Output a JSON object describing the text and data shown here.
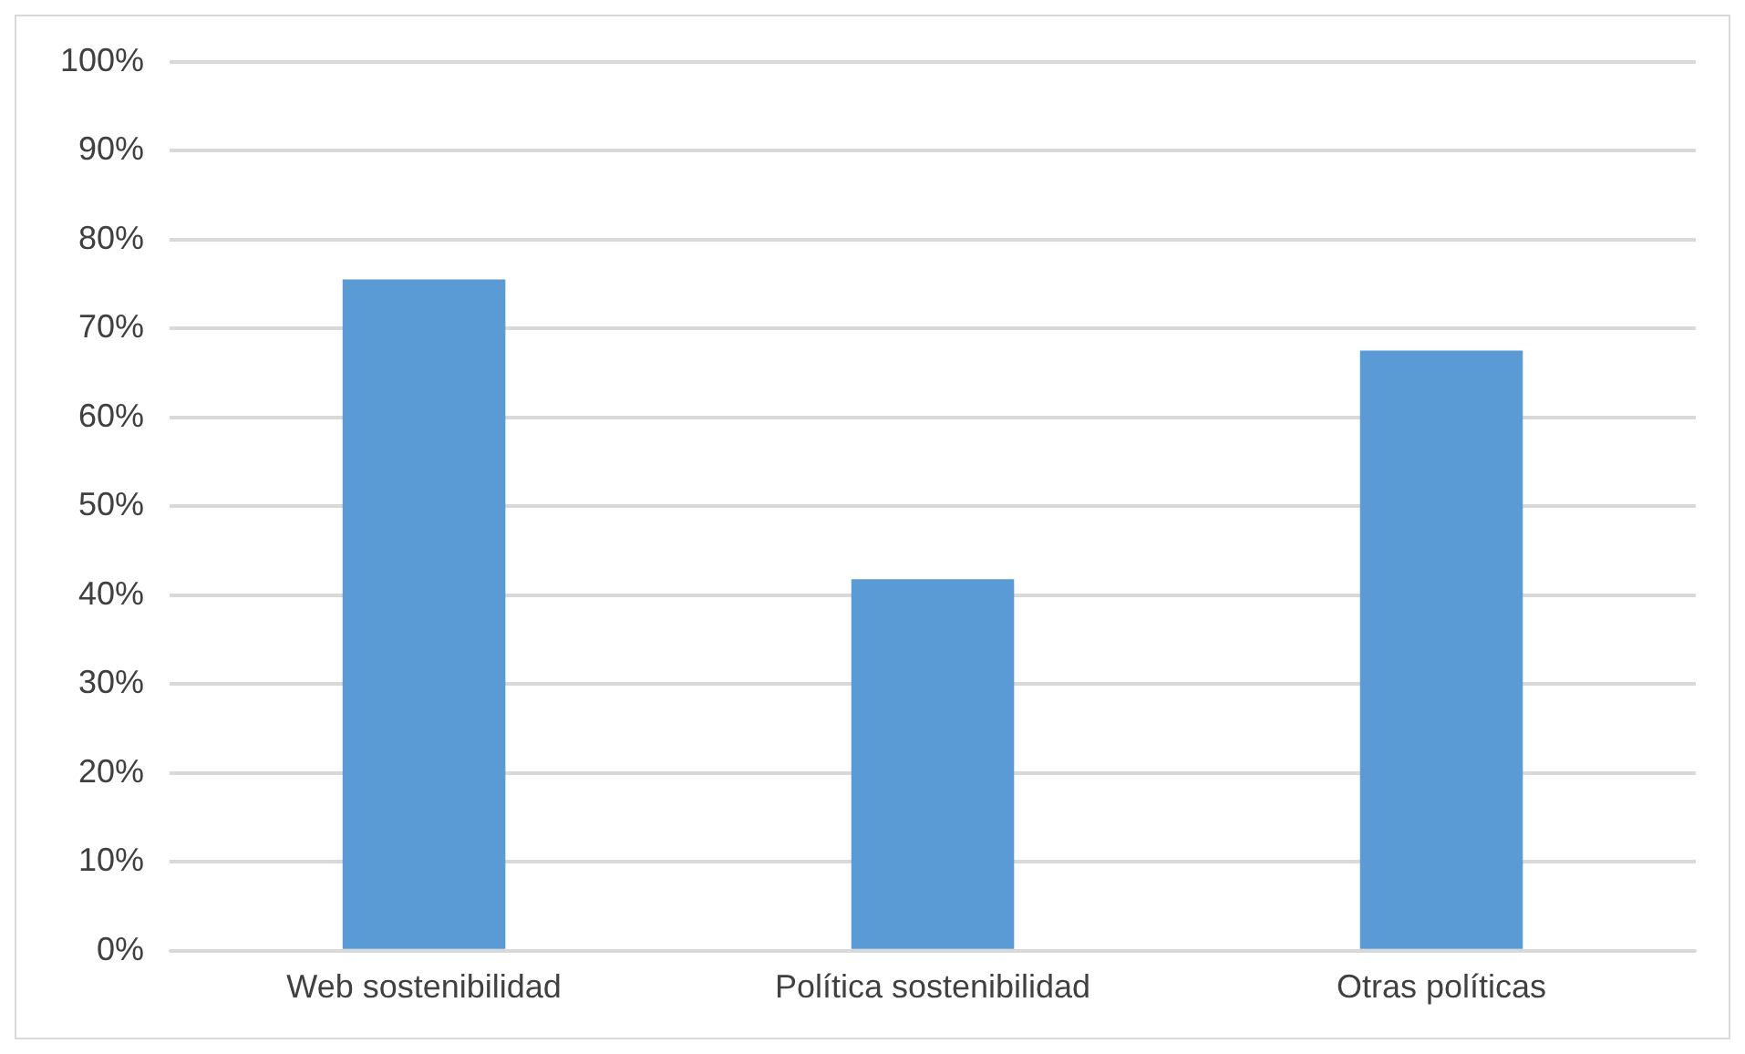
{
  "chart_data": {
    "type": "bar",
    "categories": [
      "Web sostenibilidad",
      "Política sostenibilidad",
      "Otras políticas"
    ],
    "values": [
      75.5,
      41.8,
      67.5
    ],
    "color": "#5b9bd5",
    "ylim": [
      0,
      100
    ],
    "yticks": [
      {
        "value": 0,
        "label": "0%"
      },
      {
        "value": 10,
        "label": "10%"
      },
      {
        "value": 20,
        "label": "20%"
      },
      {
        "value": 30,
        "label": "30%"
      },
      {
        "value": 40,
        "label": "40%"
      },
      {
        "value": 50,
        "label": "50%"
      },
      {
        "value": 60,
        "label": "60%"
      },
      {
        "value": 70,
        "label": "70%"
      },
      {
        "value": 80,
        "label": "80%"
      },
      {
        "value": 90,
        "label": "90%"
      },
      {
        "value": 100,
        "label": "100%"
      }
    ],
    "grid": "y",
    "legend": false
  }
}
